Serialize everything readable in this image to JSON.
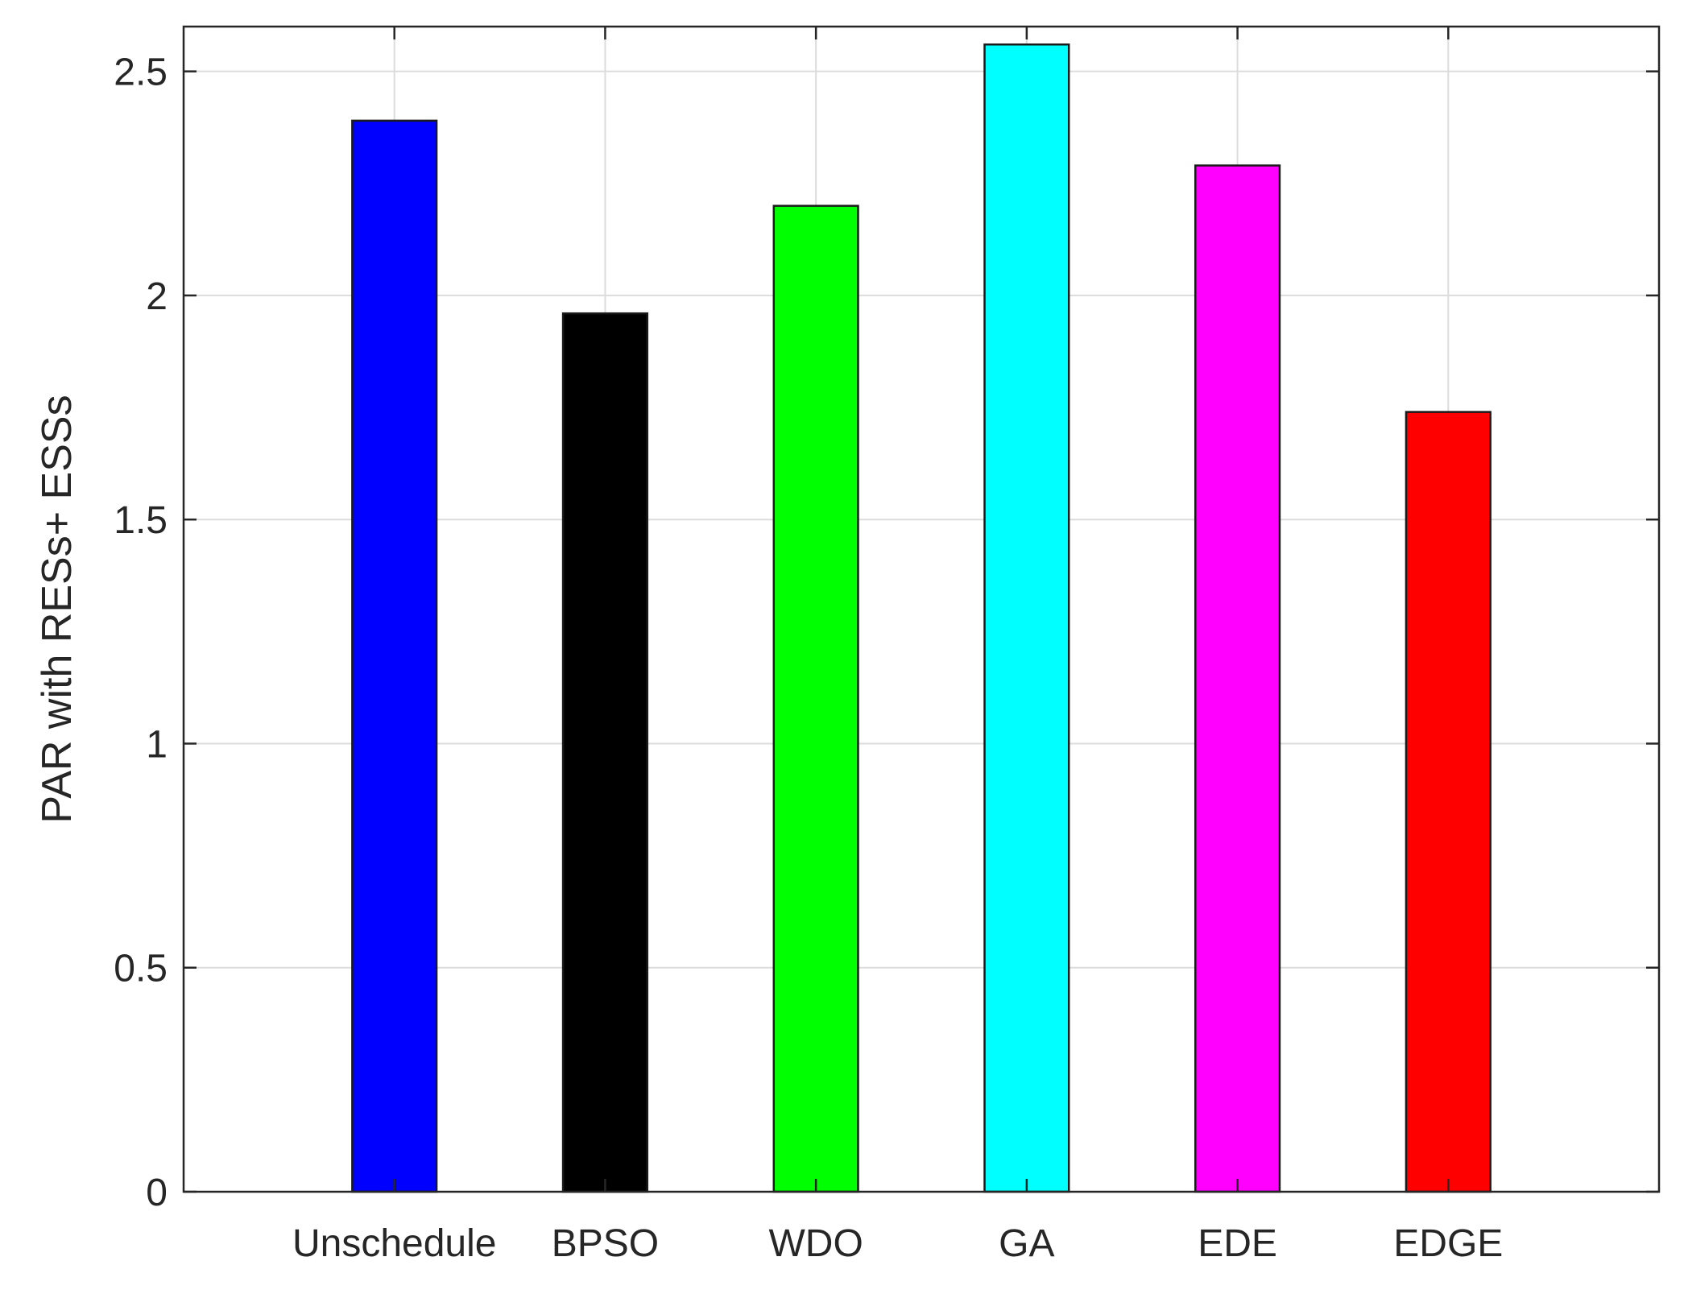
{
  "chart_data": {
    "type": "bar",
    "categories": [
      "Unschedule",
      "BPSO",
      "WDO",
      "GA",
      "EDE",
      "EDGE"
    ],
    "values": [
      2.39,
      1.96,
      2.2,
      2.56,
      2.29,
      1.74
    ],
    "colors": [
      "#0000ff",
      "#000000",
      "#00ff00",
      "#00ffff",
      "#ff00ff",
      "#ff0000"
    ],
    "title": "",
    "xlabel": "",
    "ylabel": "PAR with RESs+ ESSs",
    "ylim": [
      0,
      2.6
    ],
    "xlim": [
      0,
      7
    ],
    "yticks": [
      0,
      0.5,
      1,
      1.5,
      2,
      2.5
    ],
    "ytick_labels": [
      "0",
      "0.5",
      "1",
      "1.5",
      "2",
      "2.5"
    ],
    "grid": true,
    "legend": "none"
  }
}
